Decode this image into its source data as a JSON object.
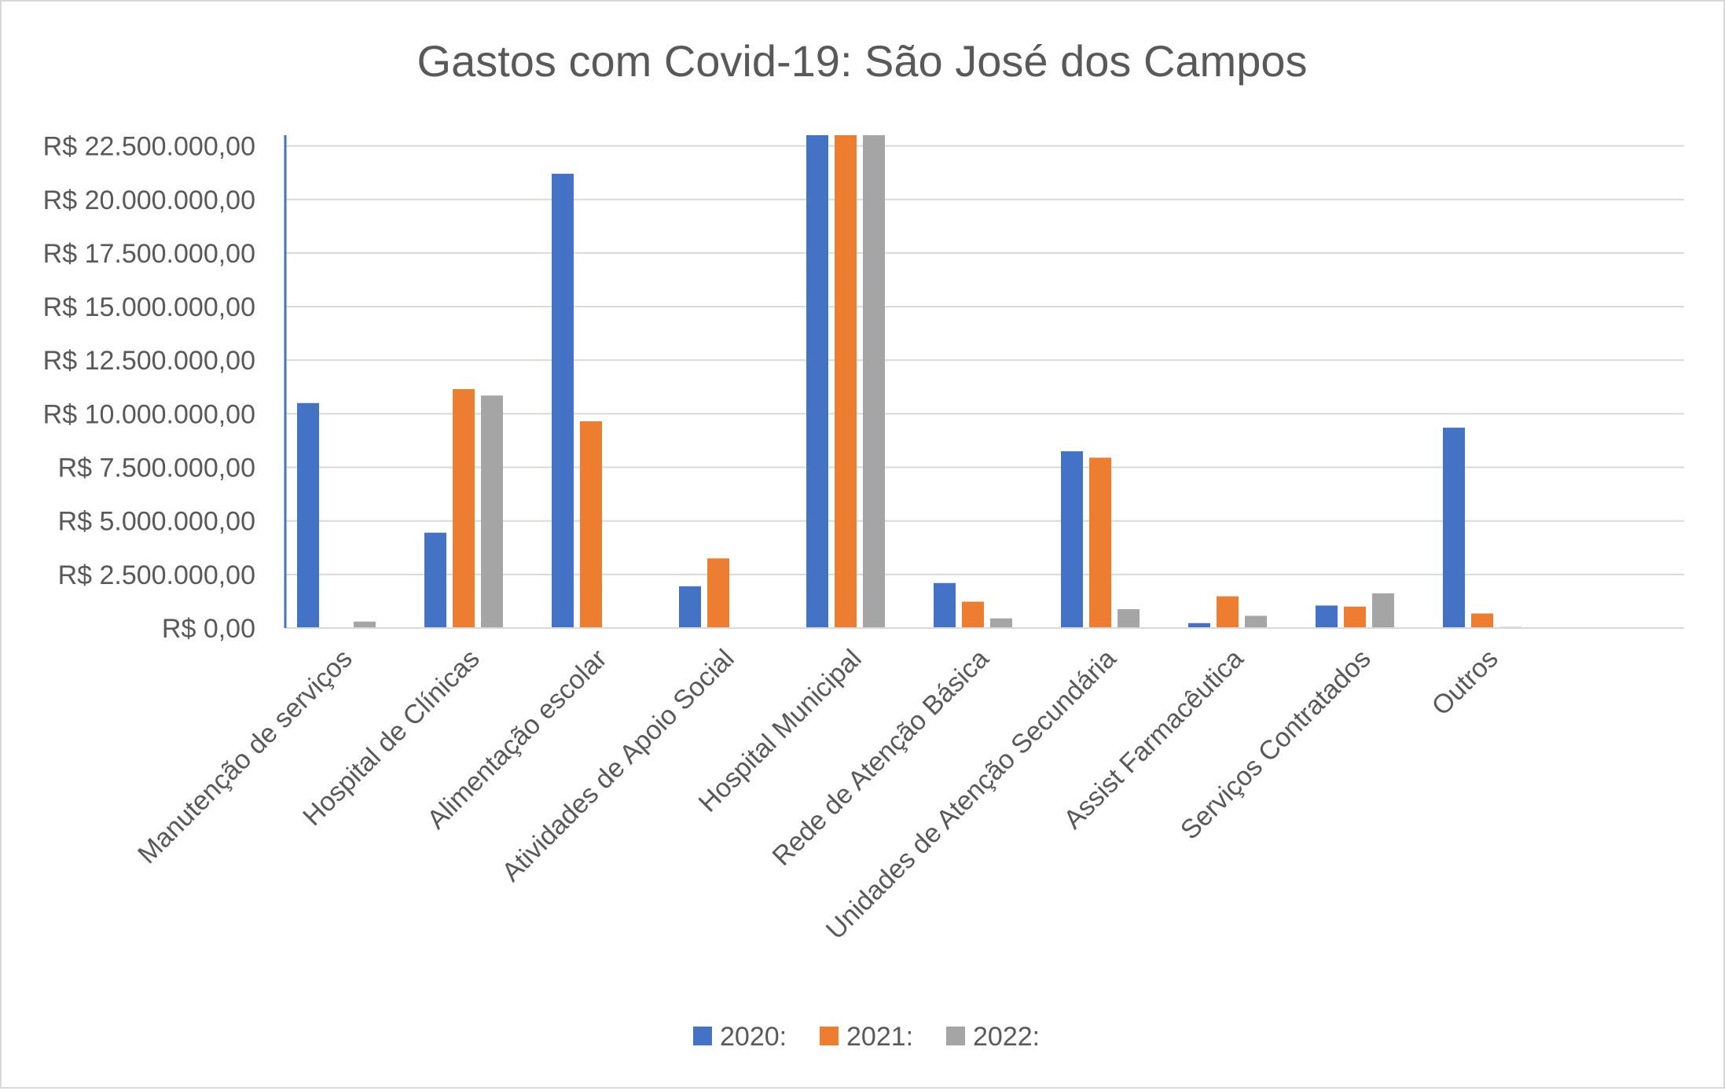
{
  "chart_data": {
    "type": "bar",
    "title": "Gastos com Covid-19: São José dos Campos",
    "xlabel": "",
    "ylabel": "",
    "ylim": [
      0,
      23000000
    ],
    "yticks": [
      0,
      2500000,
      5000000,
      7500000,
      10000000,
      12500000,
      15000000,
      17500000,
      20000000,
      22500000
    ],
    "ytick_labels": [
      "R$ 0,00",
      "R$ 2.500.000,00",
      "R$ 5.000.000,00",
      "R$ 7.500.000,00",
      "R$ 10.000.000,00",
      "R$ 12.500.000,00",
      "R$ 15.000.000,00",
      "R$ 17.500.000,00",
      "R$ 20.000.000,00",
      "R$ 22.500.000,00"
    ],
    "categories": [
      "Manutenção de serviços",
      "Hospital de Clínicas",
      "Alimentação escolar",
      "Atividades de Apoio Social",
      "Hospital Municipal",
      "Rede de Atenção Básica",
      "Unidades de Atenção Secundária",
      "Assist Farmacêutica",
      "Serviços Contratados",
      "Outros"
    ],
    "series": [
      {
        "name": "2020:",
        "color": "#4472c4",
        "values": [
          10500000,
          4450000,
          21200000,
          1950000,
          23000000,
          2100000,
          8250000,
          230000,
          1050000,
          9350000
        ]
      },
      {
        "name": "2021:",
        "color": "#ed7d31",
        "values": [
          0,
          11150000,
          9650000,
          3250000,
          23000000,
          1230000,
          7950000,
          1480000,
          1000000,
          680000
        ]
      },
      {
        "name": "2022:",
        "color": "#a5a5a5",
        "values": [
          300000,
          10850000,
          0,
          0,
          23000000,
          450000,
          880000,
          570000,
          1620000,
          50000
        ]
      }
    ],
    "grid": true,
    "legend_position": "bottom"
  }
}
